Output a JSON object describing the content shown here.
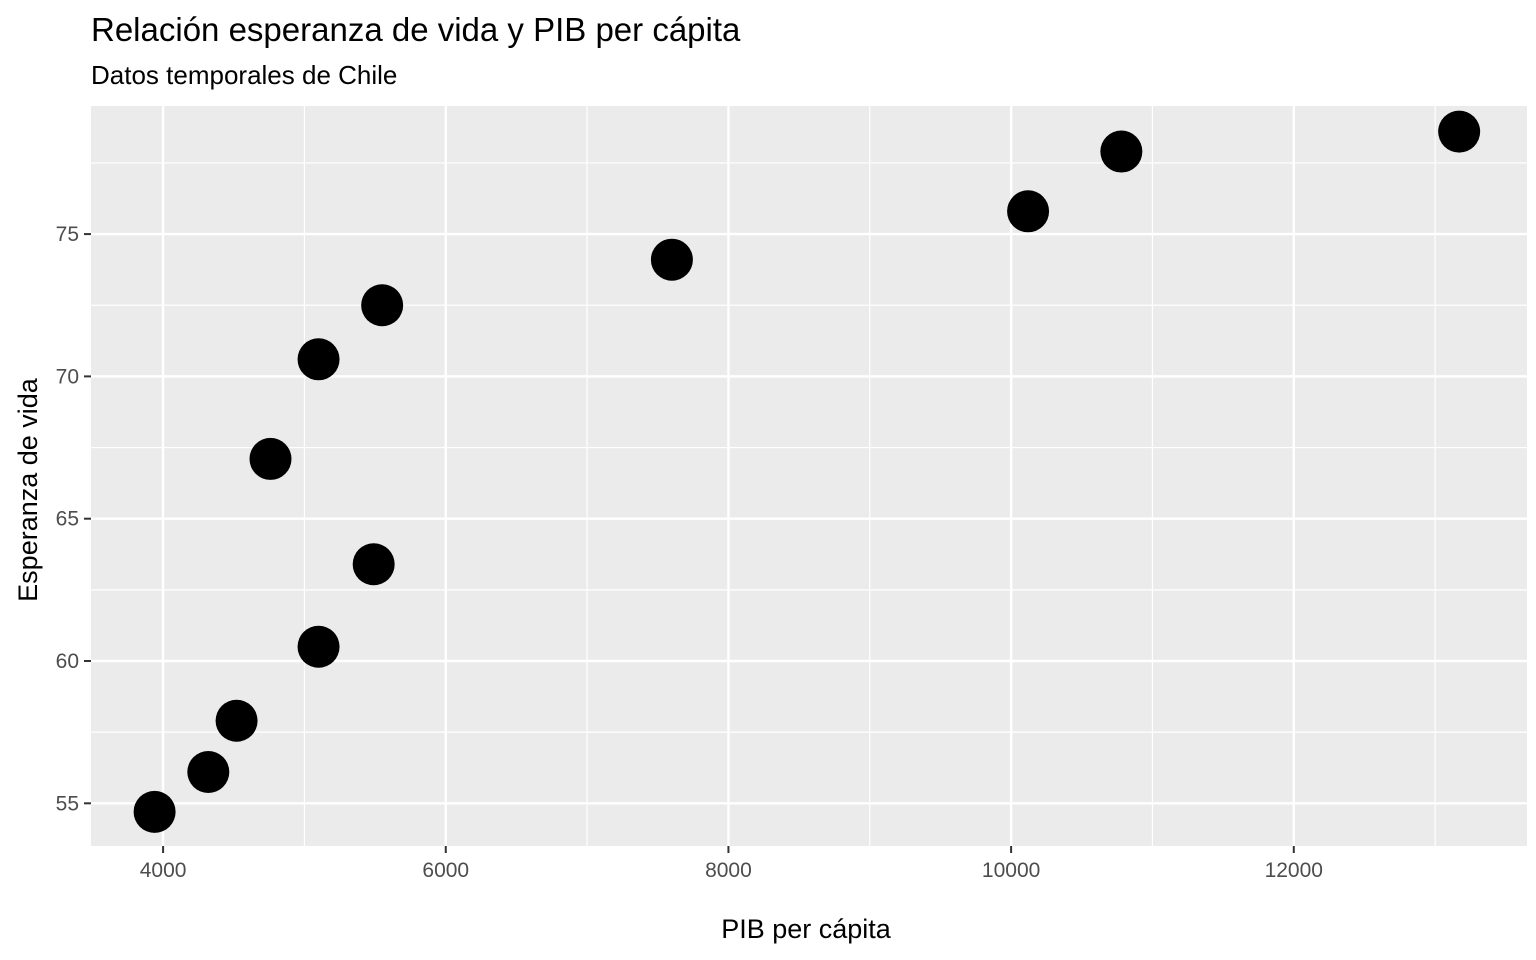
{
  "chart_data": {
    "type": "scatter",
    "title": "Relación esperanza de vida y PIB per cápita",
    "subtitle": "Datos temporales de Chile",
    "xlabel": "PIB per cápita",
    "ylabel": "Esperanza de vida",
    "xlim": [
      3490,
      13650
    ],
    "ylim": [
      53.5,
      79.5
    ],
    "x_ticks": [
      4000,
      6000,
      8000,
      10000,
      12000
    ],
    "x_tick_labels": [
      "4000",
      "6000",
      "8000",
      "10000",
      "12000"
    ],
    "x_minor": [
      5000,
      7000,
      9000,
      11000,
      13000
    ],
    "y_ticks": [
      55,
      60,
      65,
      70,
      75
    ],
    "y_tick_labels": [
      "55",
      "60",
      "65",
      "70",
      "75"
    ],
    "y_minor": [
      57.5,
      62.5,
      67.5,
      72.5,
      77.5
    ],
    "grid": true,
    "point_color": "#000000",
    "panel_color": "#ebebeb",
    "grid_color": "#ffffff",
    "points": [
      {
        "x": 3940,
        "y": 54.7
      },
      {
        "x": 4320,
        "y": 56.1
      },
      {
        "x": 4520,
        "y": 57.9
      },
      {
        "x": 5100,
        "y": 60.5
      },
      {
        "x": 5490,
        "y": 63.4
      },
      {
        "x": 4760,
        "y": 67.1
      },
      {
        "x": 5100,
        "y": 70.6
      },
      {
        "x": 5550,
        "y": 72.5
      },
      {
        "x": 7600,
        "y": 74.1
      },
      {
        "x": 10120,
        "y": 75.8
      },
      {
        "x": 10780,
        "y": 77.9
      },
      {
        "x": 13170,
        "y": 78.6
      }
    ]
  }
}
